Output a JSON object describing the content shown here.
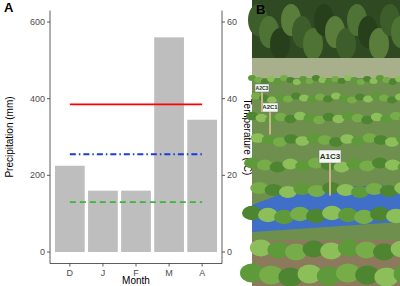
{
  "chart_data": {
    "type": "bar",
    "title": "A",
    "categories": [
      "D",
      "J",
      "F",
      "M",
      "A"
    ],
    "x_label": "Month",
    "y_label": "Precipitation (mm)",
    "y2_label": "Temperature (°C)",
    "ylim": [
      -30,
      630
    ],
    "yticks": [
      0,
      200,
      400,
      600
    ],
    "y2lim": [
      -3,
      63
    ],
    "y2ticks": [
      0,
      20,
      40,
      60
    ],
    "grid": false,
    "series": [
      {
        "type": "bar",
        "color": "#bebebe",
        "values": [
          225,
          160,
          160,
          560,
          345
        ]
      },
      {
        "type": "line",
        "axis": "y2",
        "color": "#ff0000",
        "line_style": "solid",
        "values": [
          38.5,
          38.5,
          38.5,
          38.5,
          38.5
        ]
      },
      {
        "type": "line",
        "axis": "y2",
        "color": "#1a3cd6",
        "line_style": "dashdot",
        "values": [
          25.5,
          25.5,
          25.5,
          25.5,
          25.5
        ]
      },
      {
        "type": "line",
        "axis": "y2",
        "color": "#33bb33",
        "line_style": "dashed",
        "values": [
          13,
          13,
          13,
          13,
          13
        ]
      }
    ]
  },
  "photo": {
    "label": "B",
    "signs": [
      "A1C3",
      "A2C1",
      "A2C3"
    ]
  }
}
